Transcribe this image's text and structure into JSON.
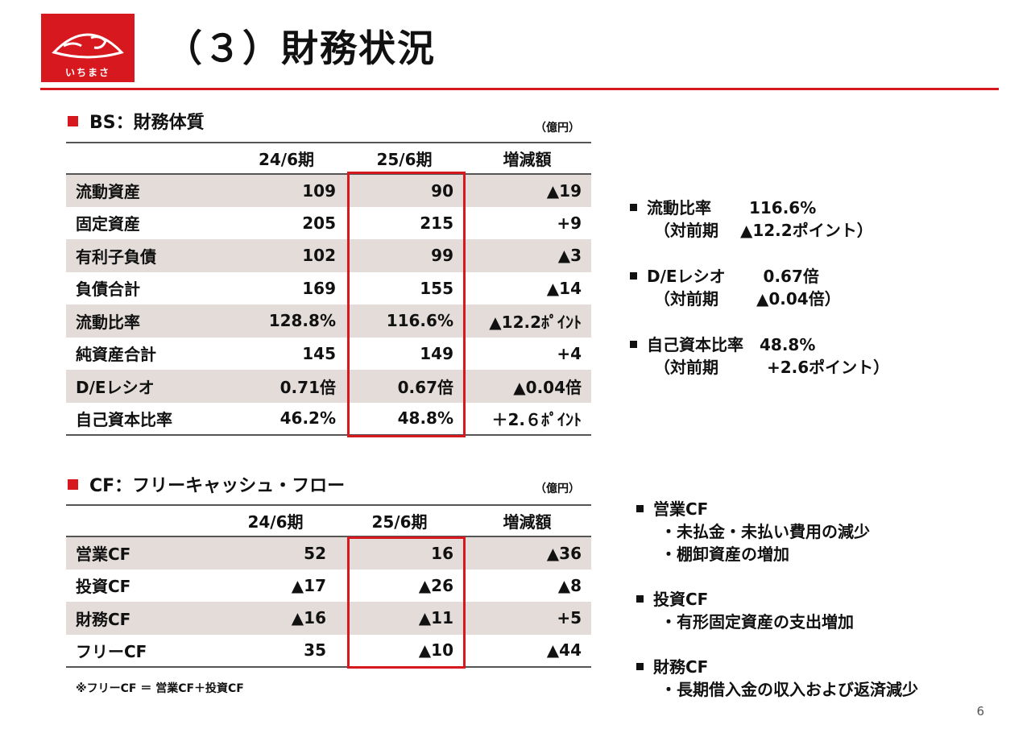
{
  "logo": {
    "text": "いちまさ",
    "brand_color": "#d7191f"
  },
  "title": "（３）財務状況",
  "bs": {
    "heading": "BS：財務体質",
    "unit": "（億円）",
    "columns": [
      "24/6期",
      "25/6期",
      "増減額"
    ],
    "rows": [
      {
        "label": "流動資産",
        "v1": "109",
        "v2": "90",
        "diff": "▲19"
      },
      {
        "label": "固定資産",
        "v1": "205",
        "v2": "215",
        "diff": "+9"
      },
      {
        "label": "有利子負債",
        "v1": "102",
        "v2": "99",
        "diff": "▲3"
      },
      {
        "label": "負債合計",
        "v1": "169",
        "v2": "155",
        "diff": "▲14"
      },
      {
        "label": "流動比率",
        "v1": "128.8%",
        "v2": "116.6%",
        "diff": "▲12.2ﾎﾟｲﾝﾄ"
      },
      {
        "label": "純資産合計",
        "v1": "145",
        "v2": "149",
        "diff": "+4"
      },
      {
        "label": "D/Eレシオ",
        "v1": "0.71倍",
        "v2": "0.67倍",
        "diff": "▲0.04倍"
      },
      {
        "label": "自己資本比率",
        "v1": "46.2%",
        "v2": "48.8%",
        "diff": "＋2.６ﾎﾟｲﾝﾄ"
      }
    ]
  },
  "bs_notes": [
    {
      "line1": "流動比率　　 116.6%",
      "line2": "（対前期　 ▲12.2ポイント）"
    },
    {
      "line1": "D/Eレシオ　　 0.67倍",
      "line2": "（対前期　　 ▲0.04倍）"
    },
    {
      "line1": "自己資本比率　48.8%",
      "line2": "（対前期　　　+2.6ポイント）"
    }
  ],
  "cf": {
    "heading": "CF：フリーキャッシュ・フロー",
    "unit": "（億円）",
    "columns": [
      "24/6期",
      "25/6期",
      "増減額"
    ],
    "rows": [
      {
        "label": "営業CF",
        "v1": "52",
        "v2": "16",
        "diff": "▲36"
      },
      {
        "label": "投資CF",
        "v1": "▲17",
        "v2": "▲26",
        "diff": "▲8"
      },
      {
        "label": "財務CF",
        "v1": "▲16",
        "v2": "▲11",
        "diff": "+5"
      },
      {
        "label": "フリーCF",
        "v1": "35",
        "v2": "▲10",
        "diff": "▲44"
      }
    ],
    "note": "※フリーCF ＝ 営業CF＋投資CF"
  },
  "cf_notes": [
    {
      "head": "営業CF",
      "items": [
        "・未払金・未払い費用の減少",
        "・棚卸資産の増加"
      ]
    },
    {
      "head": "投資CF",
      "items": [
        "・有形固定資産の支出増加"
      ]
    },
    {
      "head": "財務CF",
      "items": [
        "・長期借入金の収入および返済減少"
      ]
    }
  ],
  "page_number": "6"
}
